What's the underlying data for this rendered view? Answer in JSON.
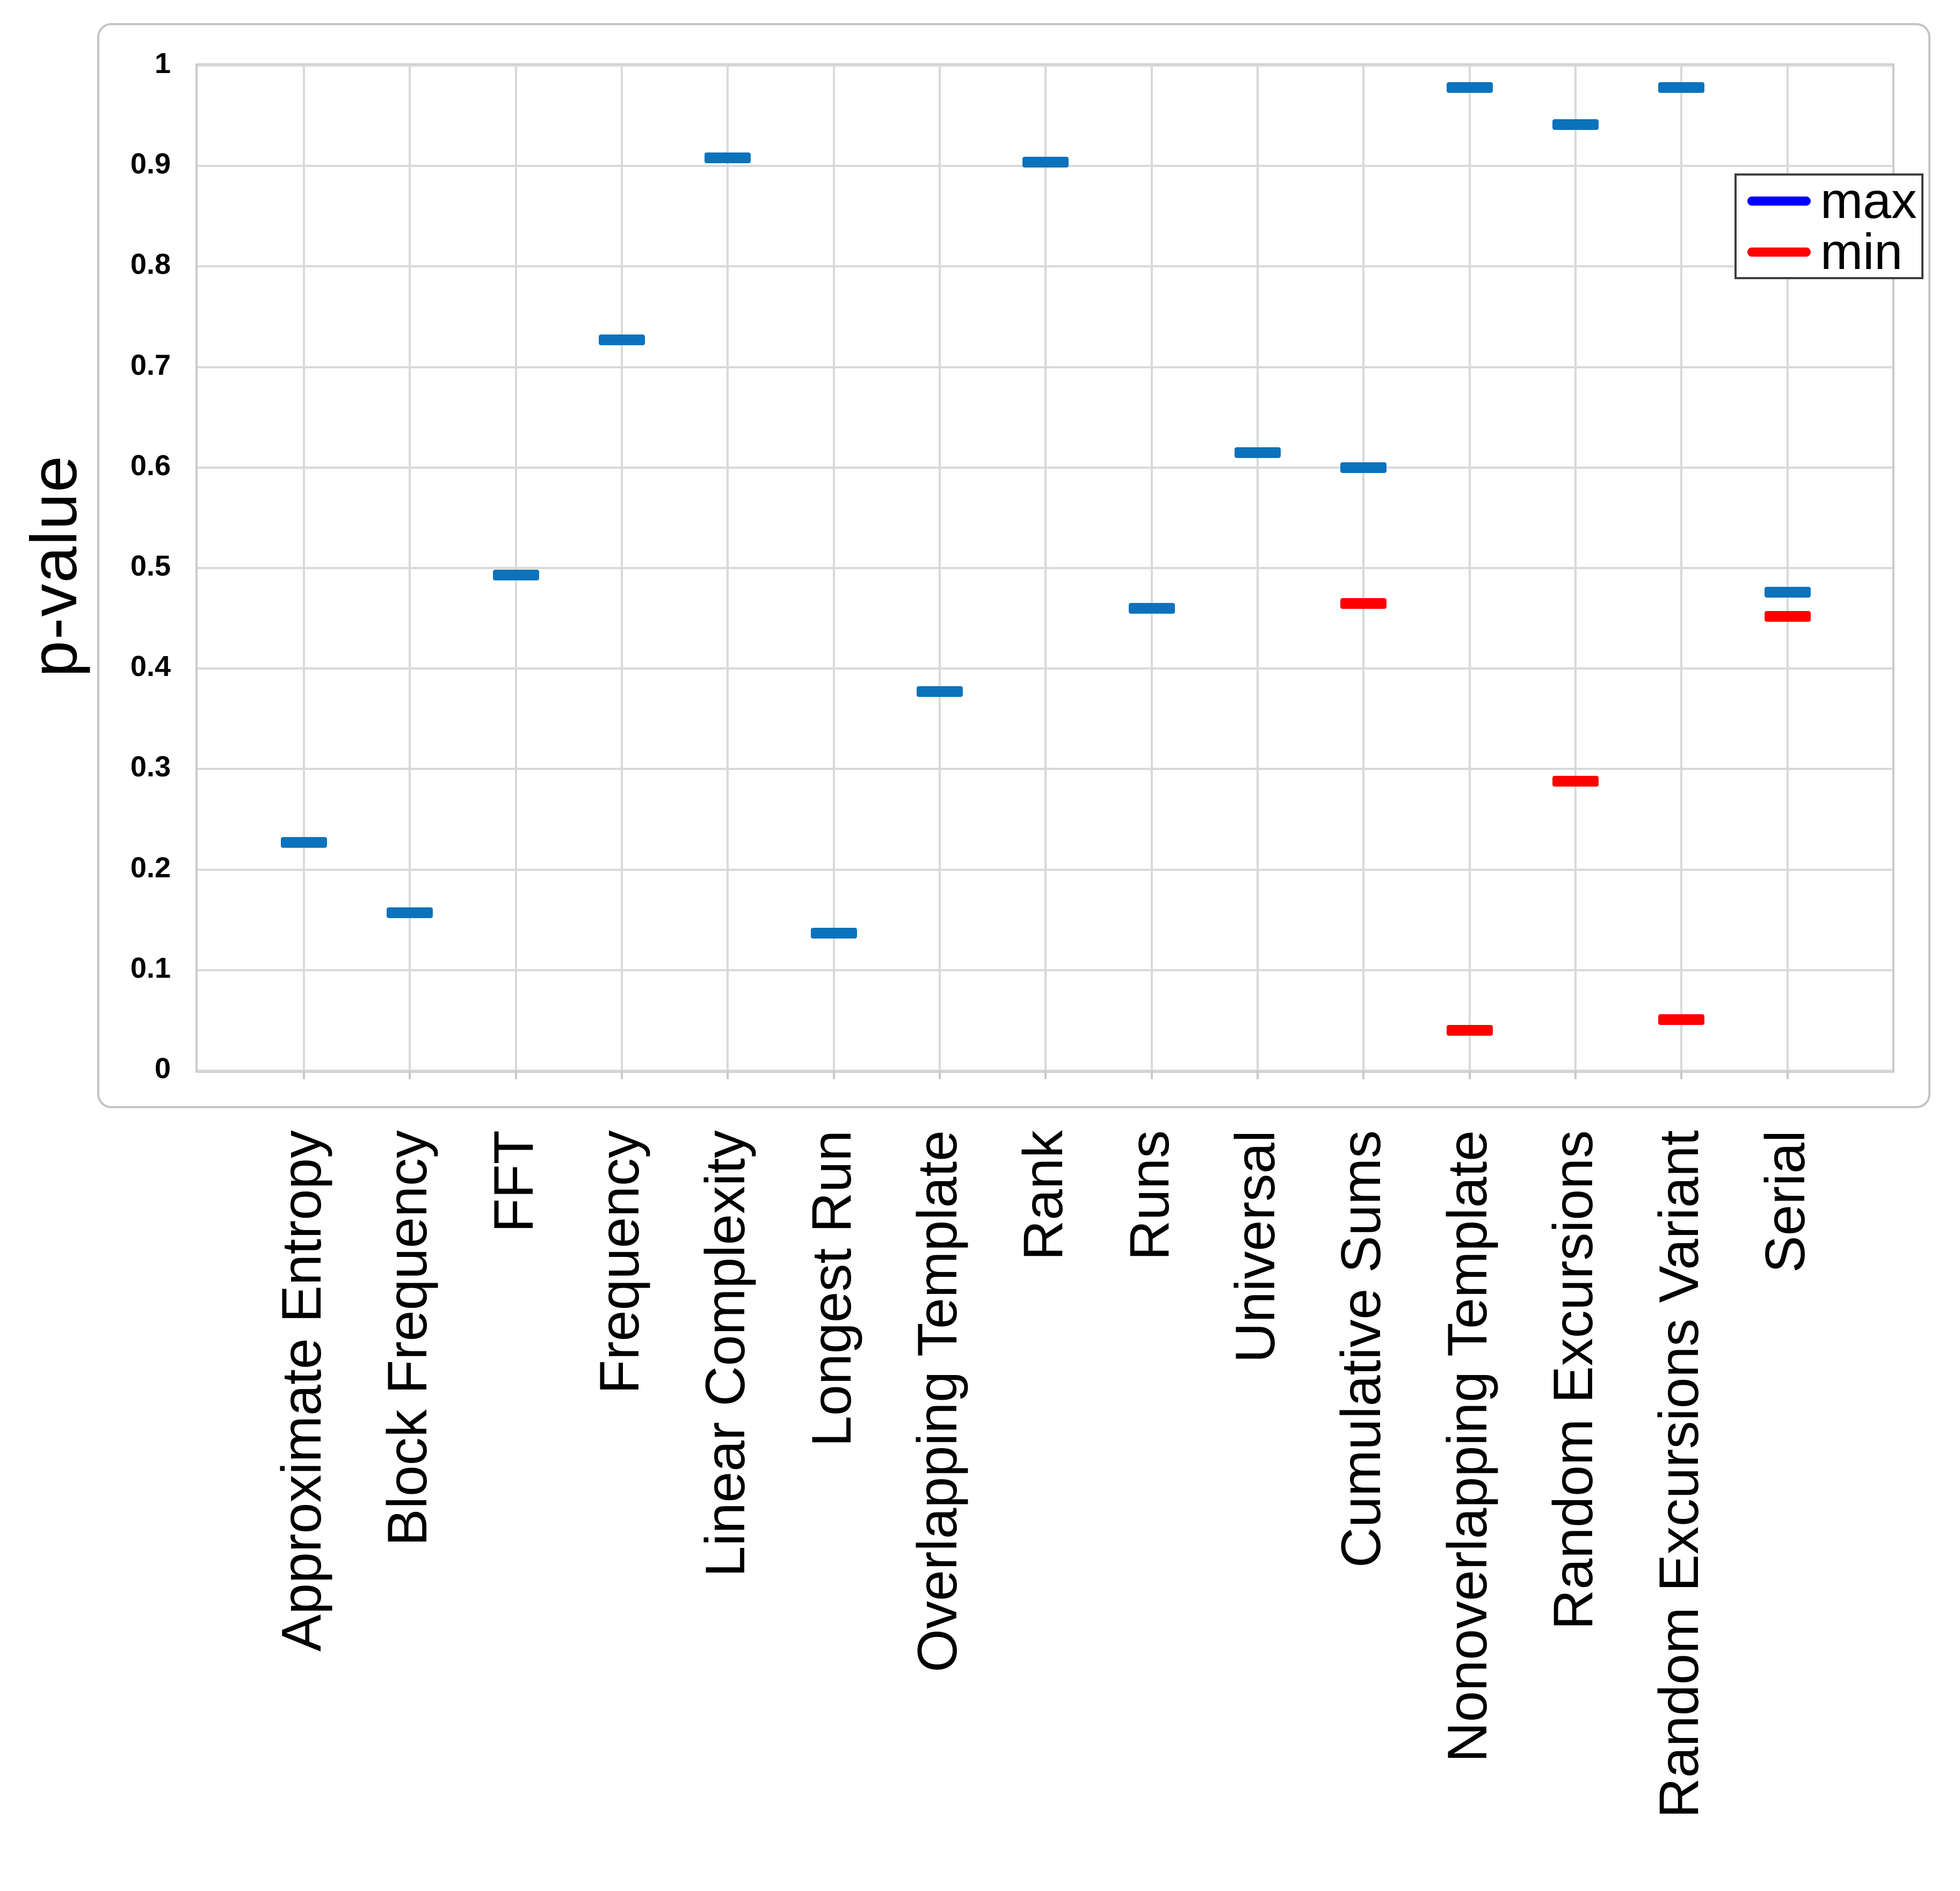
{
  "colors": {
    "background": "#FFFFFF",
    "gridline": "#D9D9D9",
    "plot_border": "#CBCBCB",
    "frame_border": "#C4C4C4",
    "legend_border": "#3F3F3F",
    "text": "#000000",
    "max_marker": "#0C72BC",
    "min_marker": "#FF0000",
    "max_legend_line": "#0000FF",
    "min_legend_line": "#FF0000"
  },
  "legend": {
    "entries": [
      {
        "label": "max",
        "color": "#0000FF"
      },
      {
        "label": "min",
        "color": "#FF0000"
      }
    ]
  },
  "chart_data": {
    "type": "scatter",
    "marker_style": "horizontal-dash",
    "title": "",
    "xlabel": "",
    "ylabel": "p-value",
    "ylim": [
      0,
      1
    ],
    "grid": true,
    "legend_position": "upper-right",
    "ytick_values": [
      0,
      0.1,
      0.2,
      0.3,
      0.4,
      0.5,
      0.6,
      0.7,
      0.8,
      0.9,
      1
    ],
    "ytick_labels": [
      "0",
      "0.1",
      "0.2",
      "0.3",
      "0.4",
      "0.5",
      "0.6",
      "0.7",
      "0.8",
      "0.9",
      "1"
    ],
    "categories": [
      "Approximate Entropy",
      "Block Frequency",
      "FFT",
      "Frequency",
      "Linear Complexity",
      "Longest Run",
      "Overlapping Template",
      "Rank",
      "Runs",
      "Universal",
      "Cumulative Sums",
      "Nonoverlapping Template",
      "Random Excursions",
      "Random Excursions Variant",
      "Serial"
    ],
    "series": [
      {
        "name": "max",
        "marker_color": "#0C72BC",
        "legend_color": "#0000FF",
        "values": [
          0.227,
          0.157,
          0.493,
          0.727,
          0.908,
          0.137,
          0.377,
          0.904,
          0.46,
          0.615,
          0.6,
          0.978,
          0.941,
          0.978,
          0.476
        ]
      },
      {
        "name": "min",
        "marker_color": "#FF0000",
        "legend_color": "#FF0000",
        "values": [
          null,
          null,
          null,
          null,
          null,
          null,
          null,
          null,
          null,
          null,
          0.465,
          0.04,
          0.288,
          0.051,
          0.452
        ]
      }
    ]
  }
}
